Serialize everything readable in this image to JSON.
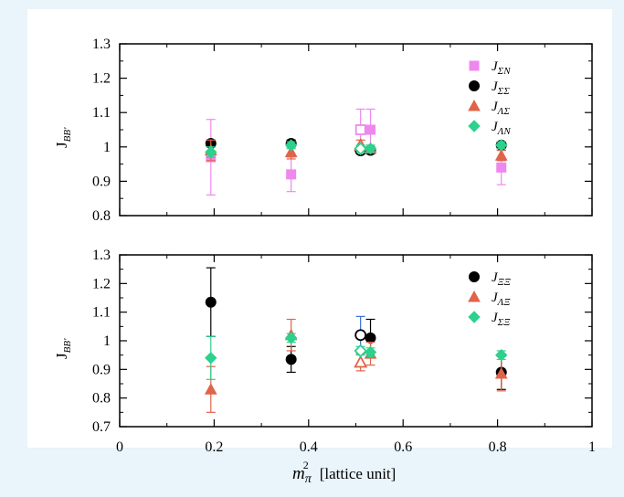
{
  "page": {
    "background": "#e9f4fb",
    "panel_background": "#ffffff"
  },
  "chart_data": [
    {
      "type": "scatter",
      "title": "",
      "xlabel": "",
      "ylabel": "J_{BB'}",
      "ylabel_main": "J",
      "ylabel_sub": "BB'",
      "xlim": [
        0,
        1
      ],
      "ylim": [
        0.8,
        1.3
      ],
      "yticks": [
        "0.8",
        "0.9",
        "1",
        "1.1",
        "1.2",
        "1.3"
      ],
      "xticks": [],
      "legend_position": "top-right",
      "series": [
        {
          "name": "J_{ΣN}",
          "name_main": "J",
          "name_sub": "ΣN",
          "marker": "square",
          "color": "#ee88ee",
          "points": [
            {
              "x": 0.193,
              "y": 0.97,
              "err": 0.11
            },
            {
              "x": 0.363,
              "y": 0.92,
              "err": 0.05
            },
            {
              "x": 0.51,
              "y": 1.05,
              "err": 0.06,
              "open": true
            },
            {
              "x": 0.531,
              "y": 1.05,
              "err": 0.06
            },
            {
              "x": 0.808,
              "y": 0.94,
              "err": 0.05
            }
          ]
        },
        {
          "name": "J_{ΣΣ}",
          "name_main": "J",
          "name_sub": "ΣΣ",
          "marker": "circle",
          "color": "#000000",
          "points": [
            {
              "x": 0.193,
              "y": 1.01,
              "err": 0.01
            },
            {
              "x": 0.363,
              "y": 1.01,
              "err": 0.01
            },
            {
              "x": 0.51,
              "y": 0.99,
              "err": 0.01,
              "open": true
            },
            {
              "x": 0.531,
              "y": 0.99,
              "err": 0.01
            },
            {
              "x": 0.808,
              "y": 1.005,
              "err": 0.01
            }
          ]
        },
        {
          "name": "J_{ΛΣ}",
          "name_main": "J",
          "name_sub": "ΛΣ",
          "marker": "triangle",
          "color": "#e0634a",
          "points": [
            {
              "x": 0.193,
              "y": 0.99,
              "err": 0.03
            },
            {
              "x": 0.363,
              "y": 0.985,
              "err": 0.02
            },
            {
              "x": 0.51,
              "y": 1.005,
              "err": 0.015,
              "open": true
            },
            {
              "x": 0.531,
              "y": 0.995,
              "err": 0.01
            },
            {
              "x": 0.808,
              "y": 0.975,
              "err": 0.015
            }
          ]
        },
        {
          "name": "J_{ΛN}",
          "name_main": "J",
          "name_sub": "ΛN",
          "marker": "diamond",
          "color": "#2bd18c",
          "points": [
            {
              "x": 0.193,
              "y": 0.985,
              "err": 0.015
            },
            {
              "x": 0.363,
              "y": 1.005,
              "err": 0.01
            },
            {
              "x": 0.51,
              "y": 0.995,
              "err": 0.01,
              "open": true
            },
            {
              "x": 0.531,
              "y": 0.995,
              "err": 0.01
            },
            {
              "x": 0.808,
              "y": 1.005,
              "err": 0.01
            }
          ]
        }
      ]
    },
    {
      "type": "scatter",
      "title": "",
      "xlabel": "m_π^2 [lattice unit]",
      "xlabel_main": "m",
      "xlabel_sub": "π",
      "xlabel_sup": "2",
      "xlabel_unit": "[lattice unit]",
      "ylabel": "J_{BB'}",
      "ylabel_main": "J",
      "ylabel_sub": "BB'",
      "xlim": [
        0,
        1
      ],
      "ylim": [
        0.7,
        1.3
      ],
      "yticks": [
        "0.7",
        "0.8",
        "0.9",
        "1",
        "1.1",
        "1.2",
        "1.3"
      ],
      "xticks": [
        "0",
        "0.2",
        "0.4",
        "0.6",
        "0.8",
        "1"
      ],
      "legend_position": "top-right",
      "series": [
        {
          "name": "J_{ΞΞ}",
          "name_main": "J",
          "name_sub": "ΞΞ",
          "marker": "circle",
          "color": "#000000",
          "points": [
            {
              "x": 0.193,
              "y": 1.135,
              "err": 0.12
            },
            {
              "x": 0.363,
              "y": 0.935,
              "err": 0.045
            },
            {
              "x": 0.51,
              "y": 1.02,
              "err": 0.065,
              "open": true,
              "errcolor": "#3b6fd6"
            },
            {
              "x": 0.531,
              "y": 1.01,
              "err": 0.065
            },
            {
              "x": 0.808,
              "y": 0.89,
              "err": 0.06
            }
          ]
        },
        {
          "name": "J_{ΛΞ}",
          "name_main": "J",
          "name_sub": "ΛΞ",
          "marker": "triangle",
          "color": "#e0634a",
          "points": [
            {
              "x": 0.193,
              "y": 0.83,
              "err": 0.08
            },
            {
              "x": 0.363,
              "y": 1.02,
              "err": 0.055
            },
            {
              "x": 0.51,
              "y": 0.925,
              "err": 0.03,
              "open": true
            },
            {
              "x": 0.531,
              "y": 0.955,
              "err": 0.04
            },
            {
              "x": 0.808,
              "y": 0.885,
              "err": 0.06
            }
          ]
        },
        {
          "name": "J_{ΣΞ}",
          "name_main": "J",
          "name_sub": "ΣΞ",
          "marker": "diamond",
          "color": "#2bd18c",
          "points": [
            {
              "x": 0.193,
              "y": 0.94,
              "err": 0.075
            },
            {
              "x": 0.363,
              "y": 1.01,
              "err": 0.015
            },
            {
              "x": 0.51,
              "y": 0.965,
              "err": 0.015,
              "open": true
            },
            {
              "x": 0.531,
              "y": 0.96,
              "err": 0.015
            },
            {
              "x": 0.808,
              "y": 0.95,
              "err": 0.015
            }
          ]
        }
      ]
    }
  ]
}
